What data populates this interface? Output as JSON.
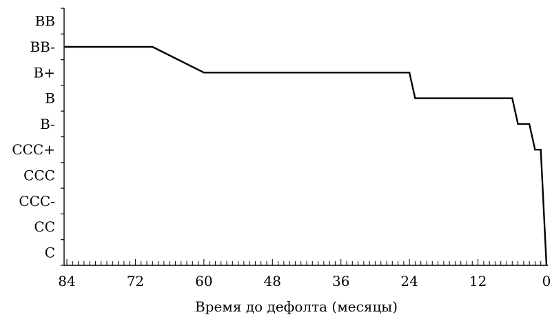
{
  "chart_data": {
    "type": "line",
    "title": "",
    "xlabel": "Время до дефолта (месяцы)",
    "ylabel": "",
    "x_ticks": [
      84,
      72,
      60,
      48,
      36,
      24,
      12,
      0
    ],
    "xlim": [
      84,
      0
    ],
    "x_direction": "reversed",
    "y_categories": [
      "C",
      "CC",
      "CCC-",
      "CCC",
      "CCC+",
      "B-",
      "B",
      "B+",
      "BB-",
      "BB"
    ],
    "series": [
      {
        "x": [
          84,
          72,
          69,
          60,
          48,
          36,
          24,
          23,
          12,
          6,
          5,
          3,
          2,
          1,
          0
        ],
        "y": [
          "BB-",
          "BB-",
          "BB-",
          "B+",
          "B+",
          "B+",
          "B+",
          "B",
          "B",
          "B",
          "B-",
          "B-",
          "CCC+",
          "CCC+",
          "C"
        ]
      }
    ]
  }
}
